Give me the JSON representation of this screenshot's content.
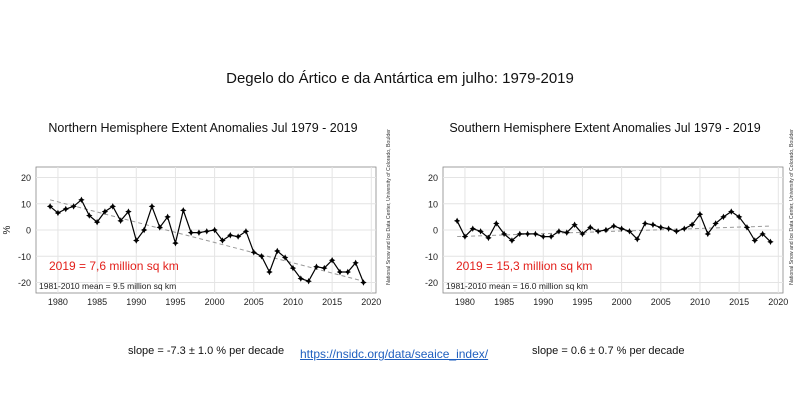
{
  "page": {
    "title": "Degelo do Ártico e da Antártica em julho: 1979-2019",
    "link": "https://nsidc.org/data/seaice_index/"
  },
  "chart_data": [
    {
      "type": "line",
      "title": "Northern Hemisphere Extent Anomalies Jul 1979 - 2019",
      "ylabel": "%",
      "xlabel": "",
      "x": [
        1979,
        1980,
        1981,
        1982,
        1983,
        1984,
        1985,
        1986,
        1987,
        1988,
        1989,
        1990,
        1991,
        1992,
        1993,
        1994,
        1995,
        1996,
        1997,
        1998,
        1999,
        2000,
        2001,
        2002,
        2003,
        2004,
        2005,
        2006,
        2007,
        2008,
        2009,
        2010,
        2011,
        2012,
        2013,
        2014,
        2015,
        2016,
        2017,
        2018,
        2019
      ],
      "values": [
        9,
        6.5,
        8,
        9,
        11.5,
        5.5,
        3,
        7,
        9,
        3.5,
        7,
        -4,
        0,
        9,
        1,
        5,
        -5,
        7.5,
        -1,
        -1,
        -0.5,
        0,
        -4,
        -2,
        -2.5,
        -0.5,
        -8.5,
        -10,
        -16,
        -8,
        -10.5,
        -14.5,
        -18.5,
        -19.5,
        -14,
        -14.5,
        -11.5,
        -16,
        -16,
        -12.5,
        -20
      ],
      "trend": [
        11.5,
        -19.5
      ],
      "xticks": [
        1980,
        1985,
        1990,
        1995,
        2000,
        2005,
        2010,
        2015,
        2020
      ],
      "yticks": [
        20,
        10,
        0,
        -10,
        -20
      ],
      "xlim": [
        1977.2,
        2020.6
      ],
      "ylim": [
        -24,
        24
      ],
      "annotation": "2019 = 7,6 million sq km",
      "mean_label": "1981-2010 mean = 9.5 million sq km",
      "slope": "slope = -7.3 ± 1.0 % per decade",
      "credit": "National Snow and Ice Data Center, University of Colorado, Boulder",
      "colors": {
        "line": "#000000",
        "trend": "#999999",
        "annotation": "#e3201b",
        "grid": "#e4e4e4"
      }
    },
    {
      "type": "line",
      "title": "Southern Hemisphere Extent Anomalies Jul 1979 - 2019",
      "ylabel": "",
      "xlabel": "",
      "x": [
        1979,
        1980,
        1981,
        1982,
        1983,
        1984,
        1985,
        1986,
        1987,
        1988,
        1989,
        1990,
        1991,
        1992,
        1993,
        1994,
        1995,
        1996,
        1997,
        1998,
        1999,
        2000,
        2001,
        2002,
        2003,
        2004,
        2005,
        2006,
        2007,
        2008,
        2009,
        2010,
        2011,
        2012,
        2013,
        2014,
        2015,
        2016,
        2017,
        2018,
        2019
      ],
      "values": [
        3.5,
        -2.5,
        0.5,
        -0.5,
        -3,
        2.5,
        -1.5,
        -4,
        -1.5,
        -1.5,
        -1.5,
        -2.5,
        -2.5,
        -0.5,
        -1,
        2,
        -1.5,
        1,
        -0.5,
        0,
        1.5,
        0.5,
        -0.5,
        -3.5,
        2.5,
        2,
        1,
        0.5,
        -0.5,
        0.5,
        2,
        6,
        -1.5,
        2.5,
        5,
        7,
        5,
        1,
        -4,
        -1.5,
        -4.5
      ],
      "trend": [
        -2.5,
        1.5
      ],
      "xticks": [
        1980,
        1985,
        1990,
        1995,
        2000,
        2005,
        2010,
        2015,
        2020
      ],
      "yticks": [
        20,
        10,
        0,
        -10,
        -20
      ],
      "xlim": [
        1977.2,
        2020.6
      ],
      "ylim": [
        -24,
        24
      ],
      "annotation": "2019 = 15,3 million sq km",
      "mean_label": "1981-2010 mean = 16.0 million sq km",
      "slope": "slope = 0.6 ± 0.7 % per decade",
      "credit": "National Snow and Ice Data Center, University of Colorado, Boulder",
      "colors": {
        "line": "#000000",
        "trend": "#999999",
        "annotation": "#e3201b",
        "grid": "#e4e4e4"
      }
    }
  ]
}
